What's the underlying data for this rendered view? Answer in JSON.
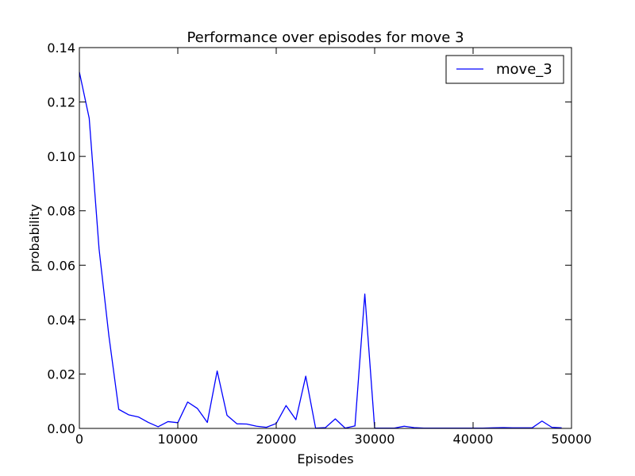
{
  "chart_data": {
    "type": "line",
    "title": "Performance over episodes for move 3",
    "xlabel": "Episodes",
    "ylabel": "probability",
    "xlim": [
      0,
      50000
    ],
    "ylim": [
      0,
      0.14
    ],
    "xticks": [
      0,
      10000,
      20000,
      30000,
      40000,
      50000
    ],
    "xtick_labels": [
      "0",
      "10000",
      "20000",
      "30000",
      "40000",
      "50000"
    ],
    "yticks": [
      0,
      0.02,
      0.04,
      0.06,
      0.08,
      0.1,
      0.12,
      0.14
    ],
    "ytick_labels": [
      "0.00",
      "0.02",
      "0.04",
      "0.06",
      "0.08",
      "0.10",
      "0.12",
      "0.14"
    ],
    "grid": false,
    "legend_position": "top-right",
    "series": [
      {
        "name": "move_3",
        "color": "#0000ff",
        "x": [
          0,
          1000,
          2000,
          3000,
          4000,
          5000,
          6000,
          7000,
          8000,
          9000,
          10000,
          11000,
          12000,
          13000,
          14000,
          15000,
          16000,
          17000,
          18000,
          19000,
          20000,
          21000,
          22000,
          23000,
          24000,
          25000,
          26000,
          27000,
          28000,
          29000,
          30000,
          31000,
          32000,
          33000,
          34000,
          35000,
          36000,
          37000,
          38000,
          39000,
          40000,
          41000,
          42000,
          43000,
          44000,
          45000,
          46000,
          47000,
          48000,
          49000
        ],
        "y": [
          0.131,
          0.114,
          0.066,
          0.034,
          0.007,
          0.005,
          0.0042,
          0.0022,
          0.0006,
          0.0025,
          0.0021,
          0.0097,
          0.0073,
          0.0022,
          0.0211,
          0.0048,
          0.0017,
          0.0016,
          0.0008,
          0.0004,
          0.0018,
          0.0084,
          0.0032,
          0.0192,
          0.0001,
          0.0003,
          0.0035,
          0.0001,
          0.0009,
          0.0494,
          0.0001,
          0.0001,
          0.0001,
          0.0008,
          0.0003,
          0.0001,
          0.0001,
          0.0001,
          0.0001,
          0.0001,
          0.0001,
          0.0001,
          0.0002,
          0.0003,
          0.0002,
          0.0002,
          0.0002,
          0.0027,
          0.0004,
          0.0002
        ]
      }
    ]
  }
}
